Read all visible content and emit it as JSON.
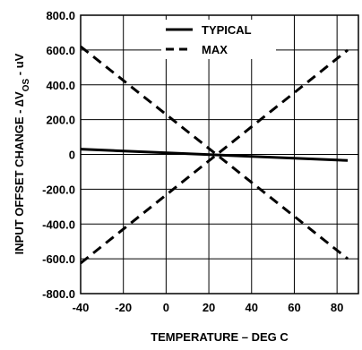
{
  "chart_data": {
    "type": "line",
    "xlabel": "TEMPERATURE – DEG C",
    "ylabel": {
      "prefix": "INPUT OFFSET CHANGE - ",
      "symbol": "∆V",
      "subscript": "OS",
      "suffix": " - uV"
    },
    "xlim": [
      -40,
      90
    ],
    "ylim": [
      -800,
      800
    ],
    "x_ticks": [
      -40,
      -20,
      0,
      20,
      40,
      60,
      80
    ],
    "x_tick_labels": [
      "-40",
      "-20",
      "0",
      "20",
      "40",
      "60",
      "80"
    ],
    "y_ticks": [
      800,
      600,
      400,
      200,
      0,
      -200,
      -400,
      -600,
      -800
    ],
    "y_tick_labels": [
      "800.0",
      "600.0",
      "400.0",
      "200.0",
      "0",
      "-200.0",
      "-400.0",
      "-600.0",
      "-800.0"
    ],
    "grid": true,
    "legend_position": "top-right",
    "series": [
      {
        "name": "TYPICAL",
        "style": "solid",
        "color": "#000000",
        "points": [
          [
            -40,
            30
          ],
          [
            85,
            -35
          ]
        ]
      },
      {
        "name": "MAX",
        "style": "dashed",
        "color": "#000000",
        "points": [
          [
            -40,
            620
          ],
          [
            85,
            -600
          ]
        ]
      },
      {
        "name": "",
        "style": "dashed",
        "color": "#000000",
        "points": [
          [
            -40,
            -625
          ],
          [
            85,
            600
          ]
        ]
      }
    ]
  }
}
